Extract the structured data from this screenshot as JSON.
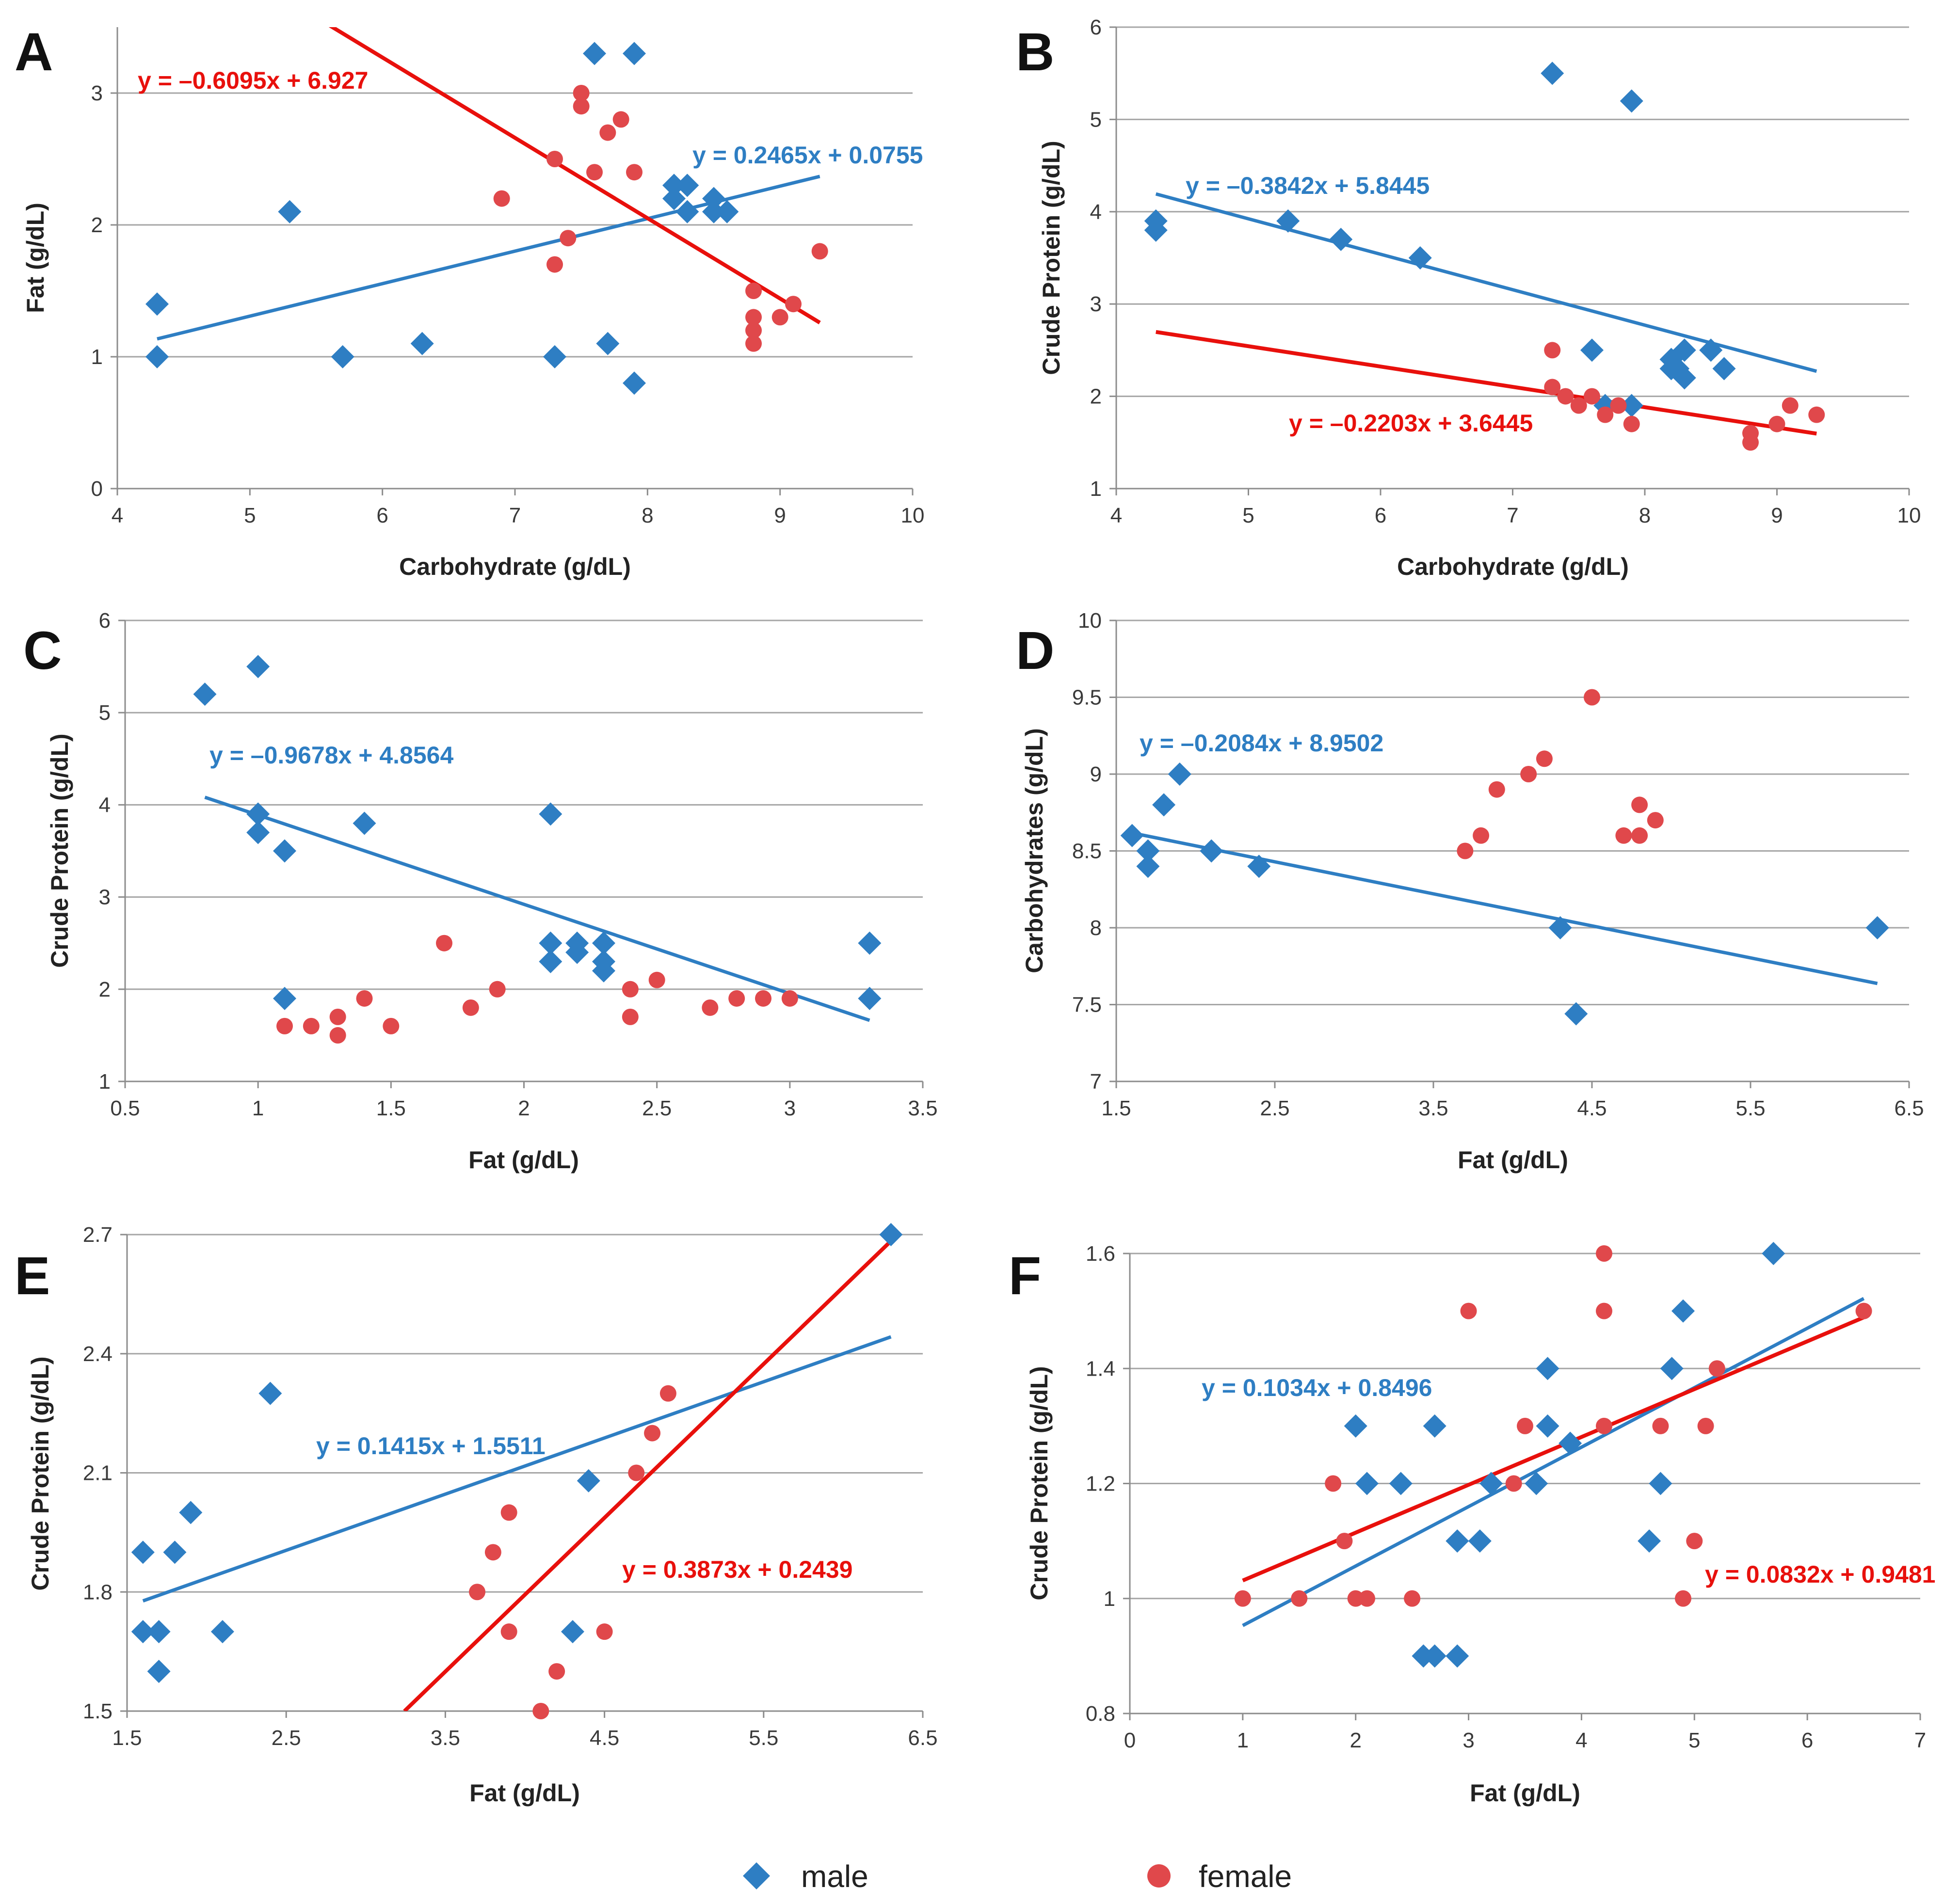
{
  "colors": {
    "male": "#2E7EC3",
    "female": "#E0484B",
    "female_line": "#E8100C",
    "grid": "#a6a6a6",
    "axis": "#8c8c8c"
  },
  "legend": {
    "male": "male",
    "female": "female"
  },
  "chart_data": [
    {
      "panel": "A",
      "type": "scatter",
      "grid": true,
      "xlabel": "Carbohydrate (g/dL)",
      "ylabel": "Fat (g/dL)",
      "xlim": [
        4,
        10
      ],
      "ylim": [
        0,
        3.5
      ],
      "xticks": [
        4,
        5,
        6,
        7,
        8,
        9,
        10
      ],
      "yticks": [
        0,
        1,
        2,
        3
      ],
      "series": [
        {
          "name": "male",
          "marker": "diamond",
          "x": [
            4.3,
            4.3,
            5.3,
            5.7,
            6.3,
            7.3,
            7.6,
            7.7,
            7.9,
            7.9,
            8.2,
            8.2,
            8.3,
            8.3,
            8.5,
            8.5,
            8.6
          ],
          "y": [
            1.4,
            1.0,
            2.1,
            1.0,
            1.1,
            1.0,
            3.3,
            1.1,
            0.8,
            3.3,
            2.3,
            2.2,
            2.3,
            2.1,
            2.2,
            2.1,
            2.1
          ]
        },
        {
          "name": "female",
          "marker": "circle",
          "x": [
            6.9,
            7.3,
            7.3,
            7.4,
            7.5,
            7.5,
            7.6,
            7.7,
            7.8,
            7.9,
            8.8,
            8.8,
            8.8,
            8.8,
            9.0,
            9.1,
            9.3
          ],
          "y": [
            2.2,
            2.5,
            1.7,
            1.9,
            3.0,
            2.9,
            2.4,
            2.7,
            2.8,
            2.4,
            1.5,
            1.3,
            1.2,
            1.1,
            1.3,
            1.4,
            1.8
          ]
        }
      ],
      "trendlines": [
        {
          "series": "male",
          "slope": 0.2465,
          "intercept": 0.0755,
          "x_range": [
            4.3,
            9.3
          ],
          "label": "y = 0.2465x + 0.0755"
        },
        {
          "series": "female",
          "slope": -0.6095,
          "intercept": 6.927,
          "x_range": [
            5.6,
            9.3
          ],
          "label": "y = –0.6095x + 6.927"
        }
      ]
    },
    {
      "panel": "B",
      "type": "scatter",
      "grid": true,
      "xlabel": "Carbohydrate (g/dL)",
      "ylabel": "Crude Protein (g/dL)",
      "xlim": [
        4,
        10
      ],
      "ylim": [
        1,
        6
      ],
      "xticks": [
        4,
        5,
        6,
        7,
        8,
        9,
        10
      ],
      "yticks": [
        1,
        2,
        3,
        4,
        5,
        6
      ],
      "series": [
        {
          "name": "male",
          "marker": "diamond",
          "x": [
            4.3,
            4.3,
            5.3,
            5.7,
            6.3,
            7.3,
            7.6,
            7.7,
            7.9,
            7.9,
            8.2,
            8.2,
            8.25,
            8.3,
            8.3,
            8.5,
            8.6
          ],
          "y": [
            3.9,
            3.8,
            3.9,
            3.7,
            3.5,
            5.5,
            2.5,
            1.9,
            1.9,
            5.2,
            2.4,
            2.3,
            2.3,
            2.5,
            2.2,
            2.5,
            2.3
          ]
        },
        {
          "name": "female",
          "marker": "circle",
          "x": [
            7.3,
            7.3,
            7.4,
            7.5,
            7.6,
            7.7,
            7.8,
            7.9,
            8.8,
            8.8,
            9.0,
            9.1,
            9.3
          ],
          "y": [
            2.5,
            2.1,
            2.0,
            1.9,
            2.0,
            1.8,
            1.9,
            1.7,
            1.6,
            1.5,
            1.7,
            1.9,
            1.8
          ]
        }
      ],
      "trendlines": [
        {
          "series": "male",
          "slope": -0.3842,
          "intercept": 5.8445,
          "x_range": [
            4.3,
            9.3
          ],
          "label": "y = –0.3842x + 5.8445"
        },
        {
          "series": "female",
          "slope": -0.2203,
          "intercept": 3.6445,
          "x_range": [
            4.3,
            9.3
          ],
          "label": "y = –0.2203x + 3.6445"
        }
      ]
    },
    {
      "panel": "C",
      "type": "scatter",
      "grid": true,
      "xlabel": "Fat (g/dL)",
      "ylabel": "Crude Protein (g/dL)",
      "xlim": [
        0.5,
        3.5
      ],
      "ylim": [
        1,
        6
      ],
      "xticks": [
        0.5,
        1,
        1.5,
        2,
        2.5,
        3,
        3.5
      ],
      "yticks": [
        1,
        2,
        3,
        4,
        5,
        6
      ],
      "series": [
        {
          "name": "male",
          "marker": "diamond",
          "x": [
            0.8,
            1.0,
            1.0,
            1.0,
            1.1,
            1.1,
            1.4,
            2.1,
            2.1,
            2.1,
            2.2,
            2.2,
            2.3,
            2.3,
            2.3,
            3.3,
            3.3
          ],
          "y": [
            5.2,
            5.5,
            3.9,
            3.7,
            3.5,
            1.9,
            3.8,
            3.9,
            2.5,
            2.3,
            2.5,
            2.4,
            2.5,
            2.3,
            2.2,
            2.5,
            1.9
          ]
        },
        {
          "name": "female",
          "marker": "circle",
          "x": [
            1.1,
            1.2,
            1.3,
            1.3,
            1.4,
            1.5,
            1.7,
            1.8,
            1.9,
            2.4,
            2.4,
            2.5,
            2.7,
            2.8,
            2.9,
            3.0
          ],
          "y": [
            1.6,
            1.6,
            1.7,
            1.5,
            1.9,
            1.6,
            2.5,
            1.8,
            2.0,
            2.0,
            1.7,
            2.1,
            1.8,
            1.9,
            1.9,
            1.9
          ]
        }
      ],
      "trendlines": [
        {
          "series": "male",
          "slope": -0.9678,
          "intercept": 4.8564,
          "x_range": [
            0.8,
            3.3
          ],
          "label": "y = –0.9678x + 4.8564"
        }
      ]
    },
    {
      "panel": "D",
      "type": "scatter",
      "grid": true,
      "xlabel": "Fat (g/dL)",
      "ylabel": "Carbohydrates  (g/dL)",
      "xlim": [
        1.5,
        6.5
      ],
      "ylim": [
        7,
        10
      ],
      "xticks": [
        1.5,
        2.5,
        3.5,
        4.5,
        5.5,
        6.5
      ],
      "yticks": [
        7,
        7.5,
        8,
        8.5,
        9,
        9.5,
        10
      ],
      "series": [
        {
          "name": "male",
          "marker": "diamond",
          "x": [
            1.6,
            1.7,
            1.7,
            1.8,
            1.9,
            2.1,
            2.4,
            4.3,
            4.4,
            6.3
          ],
          "y": [
            8.6,
            8.5,
            8.4,
            8.8,
            9.0,
            8.5,
            8.4,
            8.0,
            7.44,
            8.0
          ]
        },
        {
          "name": "female",
          "marker": "circle",
          "x": [
            3.7,
            3.8,
            3.9,
            4.1,
            4.2,
            4.5,
            4.7,
            4.8,
            4.8,
            4.9
          ],
          "y": [
            8.5,
            8.6,
            8.9,
            9.0,
            9.1,
            9.5,
            8.6,
            8.8,
            8.6,
            8.7
          ]
        }
      ],
      "trendlines": [
        {
          "series": "male",
          "slope": -0.2084,
          "intercept": 8.9502,
          "x_range": [
            1.6,
            6.3
          ],
          "label": "y = –0.2084x + 8.9502"
        }
      ]
    },
    {
      "panel": "E",
      "type": "scatter",
      "grid": true,
      "xlabel": "Fat (g/dL)",
      "ylabel": "Crude Protein (g/dL)",
      "xlim": [
        1.5,
        6.5
      ],
      "ylim": [
        1.5,
        2.7
      ],
      "xticks": [
        1.5,
        2.5,
        3.5,
        4.5,
        5.5,
        6.5
      ],
      "yticks": [
        1.5,
        1.8,
        2.1,
        2.4,
        2.7
      ],
      "series": [
        {
          "name": "male",
          "marker": "diamond",
          "x": [
            1.6,
            1.6,
            1.7,
            1.7,
            1.8,
            1.9,
            2.1,
            2.4,
            4.3,
            4.4,
            6.3
          ],
          "y": [
            1.9,
            1.7,
            1.7,
            1.6,
            1.9,
            2.0,
            1.7,
            2.3,
            1.7,
            2.08,
            2.7
          ]
        },
        {
          "name": "female",
          "marker": "circle",
          "x": [
            3.7,
            3.8,
            3.9,
            3.9,
            4.1,
            4.2,
            4.5,
            4.7,
            4.8,
            4.9
          ],
          "y": [
            1.8,
            1.9,
            2.0,
            1.7,
            1.5,
            1.6,
            1.7,
            2.1,
            2.2,
            2.3
          ]
        }
      ],
      "trendlines": [
        {
          "series": "male",
          "slope": 0.1415,
          "intercept": 1.5511,
          "x_range": [
            1.6,
            6.3
          ],
          "label": "y = 0.1415x + 1.5511"
        },
        {
          "series": "female",
          "slope": 0.3873,
          "intercept": 0.2439,
          "x_range": [
            3.243,
            6.3
          ],
          "label": "y = 0.3873x + 0.2439"
        }
      ]
    },
    {
      "panel": "F",
      "type": "scatter",
      "grid": true,
      "xlabel": "Fat (g/dL)",
      "ylabel": "Crude Protein (g/dL)",
      "xlim": [
        0,
        7
      ],
      "ylim": [
        0.8,
        1.6
      ],
      "xticks": [
        0,
        1,
        2,
        3,
        4,
        5,
        6,
        7
      ],
      "yticks": [
        0.8,
        1,
        1.2,
        1.4,
        1.6
      ],
      "series": [
        {
          "name": "male",
          "marker": "diamond",
          "x": [
            2.0,
            2.1,
            2.4,
            2.6,
            2.7,
            2.7,
            2.9,
            2.9,
            3.1,
            3.2,
            3.6,
            3.7,
            3.7,
            3.9,
            4.6,
            4.7,
            4.8,
            4.9,
            5.7
          ],
          "y": [
            1.3,
            1.2,
            1.2,
            0.9,
            0.9,
            1.3,
            0.9,
            1.1,
            1.1,
            1.2,
            1.2,
            1.3,
            1.4,
            1.27,
            1.1,
            1.2,
            1.4,
            1.5,
            1.6
          ]
        },
        {
          "name": "female",
          "marker": "circle",
          "x": [
            1.0,
            1.5,
            1.8,
            1.9,
            2.0,
            2.1,
            2.5,
            3.0,
            3.4,
            3.5,
            4.2,
            4.2,
            4.2,
            4.7,
            4.9,
            5.0,
            5.1,
            5.2,
            6.5
          ],
          "y": [
            1.0,
            1.0,
            1.2,
            1.1,
            1.0,
            1.0,
            1.0,
            1.5,
            1.2,
            1.3,
            1.6,
            1.5,
            1.3,
            1.3,
            1.0,
            1.1,
            1.3,
            1.4,
            1.5
          ]
        }
      ],
      "trendlines": [
        {
          "series": "male",
          "slope": 0.1034,
          "intercept": 0.8496,
          "x_range": [
            1.0,
            6.5
          ],
          "label": "y = 0.1034x + 0.8496"
        },
        {
          "series": "female",
          "slope": 0.0832,
          "intercept": 0.9481,
          "x_range": [
            1.0,
            6.5
          ],
          "label": "y = 0.0832x + 0.9481"
        }
      ]
    }
  ]
}
